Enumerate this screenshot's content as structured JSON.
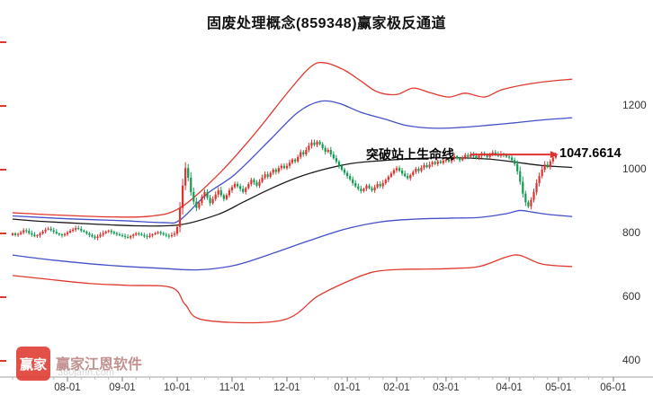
{
  "title": "固废处理概念(859348)赢家极反通道",
  "annotation": {
    "text": "突破站上生命线",
    "price_label": "1047.6614"
  },
  "watermark": {
    "logo_text": "赢家",
    "brand": "赢家江恩软件",
    "site": "360jann.com"
  },
  "colors": {
    "up": "#e0312e",
    "down": "#149b52",
    "band_red": "#e0392f",
    "band_blue": "#4450c8",
    "lifeline": "#1a1a1a",
    "price_line": "#e0312e",
    "axis_line": "#a0a0a0",
    "tick_minor": "#bbbbbb",
    "tick_major": "#777777"
  },
  "chart_data": {
    "type": "candlestick",
    "title": "固废处理概念(859348)赢家极反通道",
    "xlabel": "",
    "ylabel": "",
    "legend": [],
    "grid": false,
    "y_ticks": [
      1200,
      1000,
      800,
      600,
      400
    ],
    "y_left_tick_values": [
      1400,
      1200,
      1000,
      800,
      600,
      400
    ],
    "ylim": [
      350,
      1405
    ],
    "x_ticks": [
      {
        "label": "08-01",
        "day": 20
      },
      {
        "label": "09-01",
        "day": 40
      },
      {
        "label": "10-01",
        "day": 60
      },
      {
        "label": "11-01",
        "day": 80
      },
      {
        "label": "12-01",
        "day": 100
      },
      {
        "label": "01-01",
        "day": 122
      },
      {
        "label": "02-01",
        "day": 140
      },
      {
        "label": "03-01",
        "day": 158
      },
      {
        "label": "04-01",
        "day": 181
      },
      {
        "label": "05-01",
        "day": 199
      },
      {
        "label": "06-01",
        "day": 219
      }
    ],
    "closes": [
      800,
      795,
      798,
      803,
      810,
      808,
      801,
      796,
      791,
      794,
      800,
      806,
      812,
      815,
      810,
      805,
      800,
      797,
      794,
      798,
      803,
      808,
      812,
      817,
      814,
      809,
      805,
      800,
      795,
      790,
      786,
      790,
      796,
      801,
      806,
      809,
      804,
      800,
      797,
      794,
      792,
      789,
      787,
      792,
      796,
      800,
      798,
      795,
      791,
      789,
      793,
      797,
      801,
      804,
      800,
      796,
      793,
      791,
      795,
      799,
      820,
      880,
      950,
      1005,
      975,
      930,
      900,
      880,
      896,
      915,
      930,
      912,
      895,
      908,
      922,
      935,
      920,
      908,
      920,
      935,
      945,
      955,
      948,
      940,
      930,
      942,
      955,
      968,
      960,
      950,
      962,
      975,
      985,
      978,
      990,
      1000,
      993,
      1005,
      1012,
      1005,
      1012,
      1022,
      1032,
      1026,
      1040,
      1055,
      1048,
      1062,
      1075,
      1085,
      1078,
      1088,
      1080,
      1068,
      1056,
      1062,
      1048,
      1036,
      1025,
      1012,
      1000,
      990,
      980,
      970,
      958,
      948,
      940,
      933,
      940,
      950,
      942,
      935,
      945,
      955,
      948,
      958,
      968,
      978,
      988,
      998,
      1005,
      997,
      988,
      980,
      973,
      983,
      993,
      1003,
      996,
      1006,
      1014,
      1008,
      1016,
      1024,
      1018,
      1026,
      1021,
      1028,
      1032,
      1026,
      1034,
      1042,
      1036,
      1030,
      1038,
      1046,
      1040,
      1048,
      1043,
      1036,
      1044,
      1052,
      1046,
      1040,
      1047,
      1054,
      1049,
      1043,
      1050,
      1046,
      1041,
      1038,
      1030,
      1018,
      995,
      962,
      925,
      898,
      885,
      905,
      930,
      958,
      980,
      1000,
      1016,
      1008,
      1026,
      1038,
      1047.66
    ],
    "last_price": 1047.6614,
    "price_line": {
      "value": 1047.6614,
      "from_day": 167,
      "to_day": 196
    },
    "bands": {
      "upper_red": [
        [
          0,
          865
        ],
        [
          15,
          858
        ],
        [
          35,
          852
        ],
        [
          50,
          854
        ],
        [
          61,
          880
        ],
        [
          75,
          985
        ],
        [
          88,
          1110
        ],
        [
          101,
          1250
        ],
        [
          109,
          1325
        ],
        [
          114,
          1335
        ],
        [
          121,
          1312
        ],
        [
          127,
          1278
        ],
        [
          133,
          1244
        ],
        [
          140,
          1236
        ],
        [
          146,
          1256
        ],
        [
          152,
          1242
        ],
        [
          159,
          1228
        ],
        [
          165,
          1240
        ],
        [
          172,
          1228
        ],
        [
          178,
          1250
        ],
        [
          185,
          1264
        ],
        [
          193,
          1275
        ],
        [
          204,
          1284
        ]
      ],
      "upper_blue": [
        [
          0,
          855
        ],
        [
          20,
          846
        ],
        [
          40,
          840
        ],
        [
          55,
          834
        ],
        [
          61,
          842
        ],
        [
          71,
          925
        ],
        [
          81,
          985
        ],
        [
          94,
          1095
        ],
        [
          104,
          1180
        ],
        [
          112,
          1214
        ],
        [
          119,
          1208
        ],
        [
          127,
          1180
        ],
        [
          136,
          1158
        ],
        [
          144,
          1138
        ],
        [
          154,
          1130
        ],
        [
          164,
          1133
        ],
        [
          174,
          1140
        ],
        [
          183,
          1147
        ],
        [
          193,
          1156
        ],
        [
          204,
          1163
        ]
      ],
      "lifeline": [
        [
          0,
          845
        ],
        [
          10,
          838
        ],
        [
          28,
          830
        ],
        [
          45,
          824
        ],
        [
          61,
          827
        ],
        [
          75,
          860
        ],
        [
          84,
          898
        ],
        [
          94,
          940
        ],
        [
          104,
          976
        ],
        [
          114,
          1002
        ],
        [
          124,
          1020
        ],
        [
          134,
          1028
        ],
        [
          144,
          1034
        ],
        [
          154,
          1037
        ],
        [
          164,
          1037
        ],
        [
          174,
          1033
        ],
        [
          183,
          1024
        ],
        [
          193,
          1013
        ],
        [
          204,
          1007
        ]
      ],
      "lower_blue": [
        [
          0,
          732
        ],
        [
          15,
          716
        ],
        [
          35,
          700
        ],
        [
          55,
          690
        ],
        [
          68,
          686
        ],
        [
          81,
          700
        ],
        [
          94,
          735
        ],
        [
          108,
          777
        ],
        [
          121,
          813
        ],
        [
          134,
          836
        ],
        [
          147,
          845
        ],
        [
          160,
          848
        ],
        [
          170,
          850
        ],
        [
          180,
          862
        ],
        [
          185,
          872
        ],
        [
          190,
          866
        ],
        [
          197,
          858
        ],
        [
          204,
          853
        ]
      ],
      "lower_red": [
        [
          0,
          668
        ],
        [
          12,
          657
        ],
        [
          28,
          643
        ],
        [
          42,
          637
        ],
        [
          58,
          630
        ],
        [
          63,
          576
        ],
        [
          70,
          528
        ],
        [
          98,
          527
        ],
        [
          111,
          602
        ],
        [
          121,
          645
        ],
        [
          131,
          678
        ],
        [
          141,
          687
        ],
        [
          150,
          688
        ],
        [
          160,
          690
        ],
        [
          170,
          696
        ],
        [
          180,
          726
        ],
        [
          185,
          731
        ],
        [
          193,
          704
        ],
        [
          204,
          696
        ]
      ]
    }
  }
}
